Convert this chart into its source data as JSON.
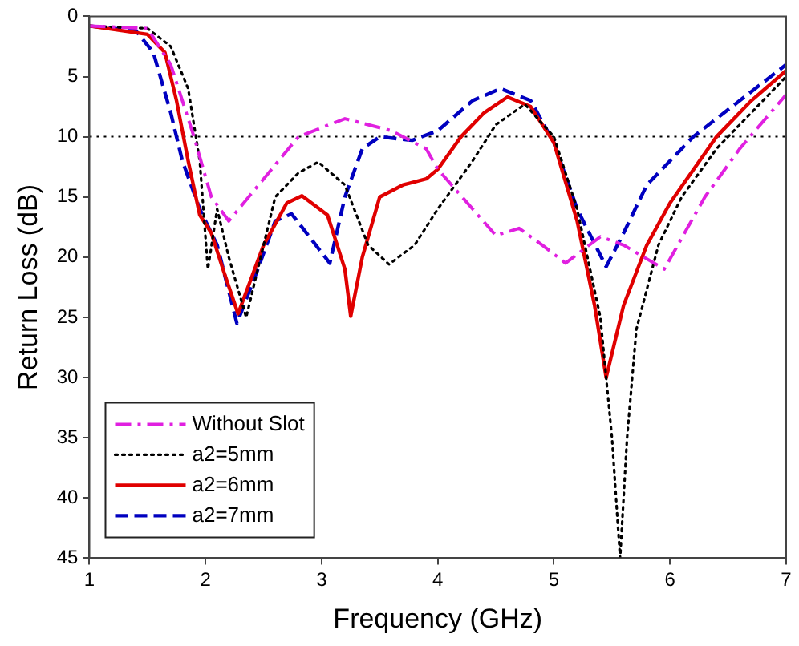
{
  "chart_data": {
    "type": "line",
    "xlabel": "Frequency (GHz)",
    "ylabel": "Return Loss (dB)",
    "xlim": [
      1,
      7
    ],
    "xticks": [
      1,
      2,
      3,
      4,
      5,
      6,
      7
    ],
    "ylim": [
      45,
      0
    ],
    "yticks": [
      0,
      5,
      10,
      15,
      20,
      25,
      30,
      35,
      40,
      45
    ],
    "grid": false,
    "legend": "bottom left",
    "marker": "none",
    "ref_lines": [
      {
        "axis": "y",
        "value": 10,
        "color": "#000000",
        "line_style": "dotted"
      }
    ],
    "series": [
      {
        "name": "Without Slot",
        "color": "#e020e0",
        "line_style": "dashdot",
        "x": [
          1,
          1.5,
          1.7,
          1.9,
          2.05,
          2.2,
          2.5,
          2.8,
          3.2,
          3.6,
          3.9,
          4.0,
          4.3,
          4.5,
          4.7,
          4.9,
          5.1,
          5.4,
          5.6,
          5.95,
          6.3,
          6.6,
          7
        ],
        "values": [
          0.8,
          1,
          4,
          10,
          15,
          17,
          13.5,
          10,
          8.5,
          9.5,
          11,
          12.7,
          16,
          18.2,
          17.6,
          19,
          20.5,
          18.3,
          19,
          21,
          15,
          11,
          6.5
        ]
      },
      {
        "name": "a2=5mm",
        "color": "#000000",
        "line_style": "dotted",
        "x": [
          1,
          1.5,
          1.7,
          1.85,
          1.95,
          2.02,
          2.1,
          2.2,
          2.35,
          2.6,
          2.8,
          2.97,
          3.2,
          3.4,
          3.58,
          3.8,
          4.0,
          4.3,
          4.5,
          4.75,
          5.0,
          5.2,
          5.4,
          5.5,
          5.57,
          5.63,
          5.71,
          5.9,
          6.1,
          6.4,
          6.7,
          7
        ],
        "values": [
          0.8,
          1,
          2.5,
          6,
          12,
          21,
          16,
          20,
          25,
          15,
          13,
          12.1,
          14,
          19,
          20.6,
          19,
          16,
          12,
          9,
          7.3,
          10,
          16,
          25,
          35,
          45,
          35,
          26,
          19,
          15,
          11,
          8,
          5
        ]
      },
      {
        "name": "a2=6mm",
        "color": "#e00000",
        "line_style": "solid",
        "x": [
          1,
          1.5,
          1.65,
          1.75,
          1.85,
          1.95,
          2.05,
          2.15,
          2.28,
          2.5,
          2.7,
          2.83,
          3.05,
          3.2,
          3.25,
          3.35,
          3.5,
          3.7,
          3.9,
          4.0,
          4.2,
          4.4,
          4.6,
          4.8,
          5.0,
          5.2,
          5.35,
          5.45,
          5.6,
          5.8,
          6.0,
          6.4,
          6.7,
          7
        ],
        "values": [
          0.8,
          1.5,
          3,
          7,
          12,
          16.5,
          18,
          21,
          24.7,
          19,
          15.5,
          14.9,
          16.5,
          21,
          24.9,
          20,
          15,
          14,
          13.5,
          12.7,
          10,
          8,
          6.7,
          7.5,
          10.5,
          17,
          24,
          30,
          24,
          19,
          15.5,
          10,
          7,
          4.5
        ]
      },
      {
        "name": "a2=7mm",
        "color": "#0000c0",
        "line_style": "dashed",
        "x": [
          1,
          1.4,
          1.55,
          1.7,
          1.8,
          1.95,
          2.1,
          2.27,
          2.45,
          2.6,
          2.74,
          2.95,
          3.07,
          3.2,
          3.35,
          3.5,
          3.78,
          4.0,
          4.3,
          4.54,
          4.8,
          5.0,
          5.2,
          5.45,
          5.6,
          5.8,
          6.2,
          6.6,
          7
        ],
        "values": [
          0.8,
          1.2,
          3,
          8,
          12,
          16,
          19,
          25.5,
          21,
          17,
          16.4,
          19,
          20.5,
          15,
          11,
          10,
          10.3,
          9.5,
          7,
          6,
          7,
          10.5,
          16,
          20.8,
          18,
          14,
          10,
          7,
          4
        ]
      }
    ]
  }
}
